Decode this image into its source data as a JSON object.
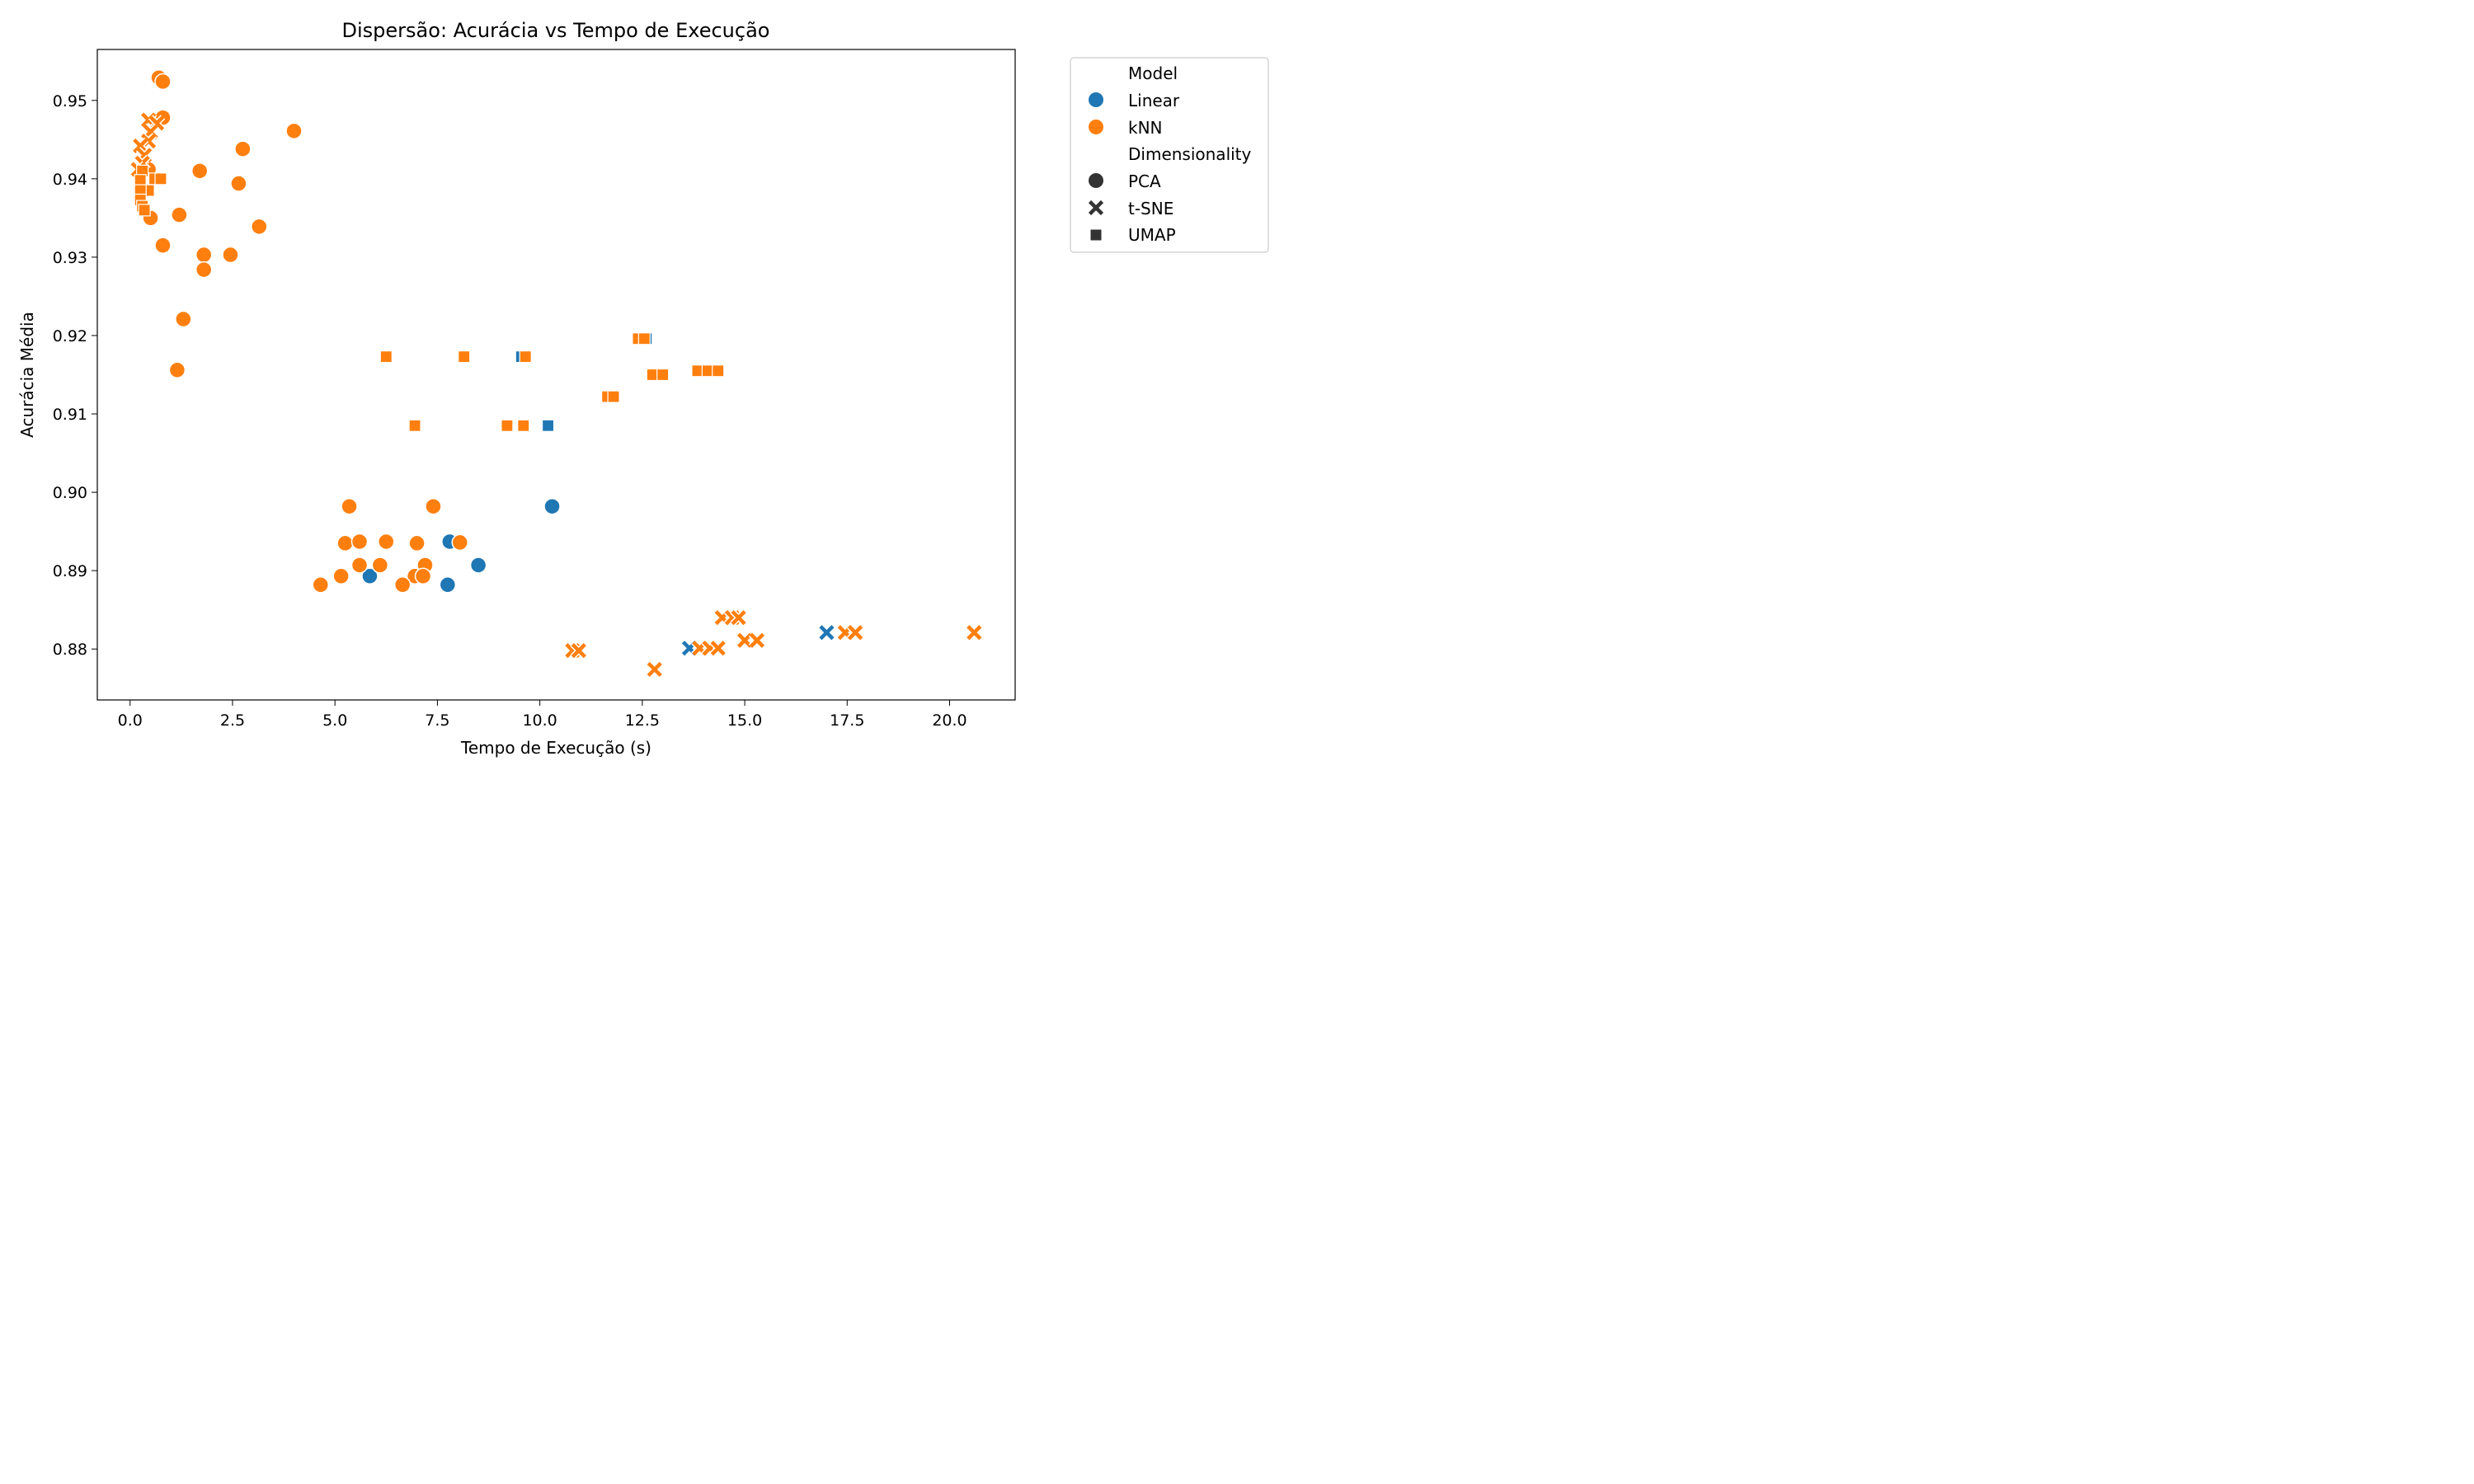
{
  "chart_data": {
    "type": "scatter",
    "title": "Dispersão: Acurácia vs Tempo de Execução",
    "xlabel": "Tempo de Execução (s)",
    "ylabel": "Acurácia Média",
    "xlim": [
      -0.8,
      21.6
    ],
    "ylim": [
      0.8735,
      0.9565
    ],
    "xticks": [
      0.0,
      2.5,
      5.0,
      7.5,
      10.0,
      12.5,
      15.0,
      17.5,
      20.0
    ],
    "xtick_labels": [
      "0.0",
      "2.5",
      "5.0",
      "7.5",
      "10.0",
      "12.5",
      "15.0",
      "17.5",
      "20.0"
    ],
    "yticks": [
      0.88,
      0.89,
      0.9,
      0.91,
      0.92,
      0.93,
      0.94,
      0.95
    ],
    "ytick_labels": [
      "0.88",
      "0.89",
      "0.90",
      "0.91",
      "0.92",
      "0.93",
      "0.94",
      "0.95"
    ],
    "grid": false,
    "legend": {
      "placement": "outside-top-right",
      "hue_title": "Model",
      "style_title": "Dimensionality",
      "hue_entries": [
        {
          "label": "Linear",
          "color": "#1f77b4"
        },
        {
          "label": "kNN",
          "color": "#ff7f0e"
        }
      ],
      "style_entries": [
        {
          "label": "PCA",
          "marker": "circle"
        },
        {
          "label": "t-SNE",
          "marker": "x"
        },
        {
          "label": "UMAP",
          "marker": "square"
        }
      ]
    },
    "series": [
      {
        "name": "Linear",
        "color": "#1f77b4",
        "points": [
          {
            "x": 5.85,
            "y": 0.8893,
            "marker": "circle"
          },
          {
            "x": 7.75,
            "y": 0.8882,
            "marker": "circle"
          },
          {
            "x": 7.8,
            "y": 0.8937,
            "marker": "circle"
          },
          {
            "x": 8.5,
            "y": 0.8907,
            "marker": "circle"
          },
          {
            "x": 10.3,
            "y": 0.8982,
            "marker": "circle"
          },
          {
            "x": 13.65,
            "y": 0.8801,
            "marker": "x"
          },
          {
            "x": 17.0,
            "y": 0.8821,
            "marker": "x"
          },
          {
            "x": 9.55,
            "y": 0.9173,
            "marker": "square"
          },
          {
            "x": 10.2,
            "y": 0.9085,
            "marker": "square"
          },
          {
            "x": 12.6,
            "y": 0.9196,
            "marker": "square"
          }
        ]
      },
      {
        "name": "kNN",
        "color": "#ff7f0e",
        "points": [
          {
            "x": 0.7,
            "y": 0.9529,
            "marker": "circle"
          },
          {
            "x": 0.8,
            "y": 0.9524,
            "marker": "circle"
          },
          {
            "x": 0.8,
            "y": 0.9478,
            "marker": "circle"
          },
          {
            "x": 4.0,
            "y": 0.9461,
            "marker": "circle"
          },
          {
            "x": 2.75,
            "y": 0.9438,
            "marker": "circle"
          },
          {
            "x": 0.45,
            "y": 0.9412,
            "marker": "circle"
          },
          {
            "x": 1.7,
            "y": 0.941,
            "marker": "circle"
          },
          {
            "x": 2.65,
            "y": 0.9394,
            "marker": "circle"
          },
          {
            "x": 0.5,
            "y": 0.935,
            "marker": "circle"
          },
          {
            "x": 1.2,
            "y": 0.9354,
            "marker": "circle"
          },
          {
            "x": 3.15,
            "y": 0.9339,
            "marker": "circle"
          },
          {
            "x": 0.8,
            "y": 0.9315,
            "marker": "circle"
          },
          {
            "x": 1.8,
            "y": 0.9303,
            "marker": "circle"
          },
          {
            "x": 2.45,
            "y": 0.9303,
            "marker": "circle"
          },
          {
            "x": 1.8,
            "y": 0.9284,
            "marker": "circle"
          },
          {
            "x": 1.3,
            "y": 0.9221,
            "marker": "circle"
          },
          {
            "x": 1.15,
            "y": 0.9156,
            "marker": "circle"
          },
          {
            "x": 5.35,
            "y": 0.8982,
            "marker": "circle"
          },
          {
            "x": 7.4,
            "y": 0.8982,
            "marker": "circle"
          },
          {
            "x": 5.25,
            "y": 0.8935,
            "marker": "circle"
          },
          {
            "x": 5.6,
            "y": 0.8937,
            "marker": "circle"
          },
          {
            "x": 6.25,
            "y": 0.8937,
            "marker": "circle"
          },
          {
            "x": 7.0,
            "y": 0.8935,
            "marker": "circle"
          },
          {
            "x": 8.05,
            "y": 0.8936,
            "marker": "circle"
          },
          {
            "x": 5.6,
            "y": 0.8907,
            "marker": "circle"
          },
          {
            "x": 6.1,
            "y": 0.8907,
            "marker": "circle"
          },
          {
            "x": 7.2,
            "y": 0.8907,
            "marker": "circle"
          },
          {
            "x": 5.15,
            "y": 0.8893,
            "marker": "circle"
          },
          {
            "x": 6.95,
            "y": 0.8893,
            "marker": "circle"
          },
          {
            "x": 7.15,
            "y": 0.8893,
            "marker": "circle"
          },
          {
            "x": 4.65,
            "y": 0.8882,
            "marker": "circle"
          },
          {
            "x": 6.65,
            "y": 0.8882,
            "marker": "circle"
          },
          {
            "x": 0.45,
            "y": 0.9475,
            "marker": "x"
          },
          {
            "x": 0.65,
            "y": 0.9471,
            "marker": "x"
          },
          {
            "x": 0.5,
            "y": 0.946,
            "marker": "x"
          },
          {
            "x": 0.45,
            "y": 0.9448,
            "marker": "x"
          },
          {
            "x": 0.25,
            "y": 0.9442,
            "marker": "x"
          },
          {
            "x": 0.35,
            "y": 0.943,
            "marker": "x"
          },
          {
            "x": 0.3,
            "y": 0.942,
            "marker": "x"
          },
          {
            "x": 0.2,
            "y": 0.9412,
            "marker": "x"
          },
          {
            "x": 14.45,
            "y": 0.884,
            "marker": "x"
          },
          {
            "x": 14.7,
            "y": 0.884,
            "marker": "x"
          },
          {
            "x": 14.85,
            "y": 0.884,
            "marker": "x"
          },
          {
            "x": 10.8,
            "y": 0.8798,
            "marker": "x"
          },
          {
            "x": 10.95,
            "y": 0.8798,
            "marker": "x"
          },
          {
            "x": 13.9,
            "y": 0.8801,
            "marker": "x"
          },
          {
            "x": 14.15,
            "y": 0.8801,
            "marker": "x"
          },
          {
            "x": 14.35,
            "y": 0.8801,
            "marker": "x"
          },
          {
            "x": 15.0,
            "y": 0.8811,
            "marker": "x"
          },
          {
            "x": 15.3,
            "y": 0.8811,
            "marker": "x"
          },
          {
            "x": 17.45,
            "y": 0.8821,
            "marker": "x"
          },
          {
            "x": 17.7,
            "y": 0.8821,
            "marker": "x"
          },
          {
            "x": 20.6,
            "y": 0.8821,
            "marker": "x"
          },
          {
            "x": 12.8,
            "y": 0.8774,
            "marker": "x"
          },
          {
            "x": 0.6,
            "y": 0.94,
            "marker": "square"
          },
          {
            "x": 0.75,
            "y": 0.94,
            "marker": "square"
          },
          {
            "x": 0.3,
            "y": 0.941,
            "marker": "square"
          },
          {
            "x": 0.25,
            "y": 0.9398,
            "marker": "square"
          },
          {
            "x": 0.45,
            "y": 0.9385,
            "marker": "square"
          },
          {
            "x": 0.25,
            "y": 0.9385,
            "marker": "square"
          },
          {
            "x": 0.25,
            "y": 0.9373,
            "marker": "square"
          },
          {
            "x": 0.3,
            "y": 0.9365,
            "marker": "square"
          },
          {
            "x": 0.35,
            "y": 0.936,
            "marker": "square"
          },
          {
            "x": 6.25,
            "y": 0.9173,
            "marker": "square"
          },
          {
            "x": 8.15,
            "y": 0.9173,
            "marker": "square"
          },
          {
            "x": 9.65,
            "y": 0.9173,
            "marker": "square"
          },
          {
            "x": 12.4,
            "y": 0.9196,
            "marker": "square"
          },
          {
            "x": 12.55,
            "y": 0.9196,
            "marker": "square"
          },
          {
            "x": 11.65,
            "y": 0.9122,
            "marker": "square"
          },
          {
            "x": 11.8,
            "y": 0.9122,
            "marker": "square"
          },
          {
            "x": 12.75,
            "y": 0.915,
            "marker": "square"
          },
          {
            "x": 13.0,
            "y": 0.915,
            "marker": "square"
          },
          {
            "x": 13.85,
            "y": 0.9155,
            "marker": "square"
          },
          {
            "x": 14.1,
            "y": 0.9155,
            "marker": "square"
          },
          {
            "x": 14.35,
            "y": 0.9155,
            "marker": "square"
          },
          {
            "x": 6.95,
            "y": 0.9085,
            "marker": "square"
          },
          {
            "x": 9.2,
            "y": 0.9085,
            "marker": "square"
          },
          {
            "x": 9.6,
            "y": 0.9085,
            "marker": "square"
          }
        ]
      }
    ]
  }
}
